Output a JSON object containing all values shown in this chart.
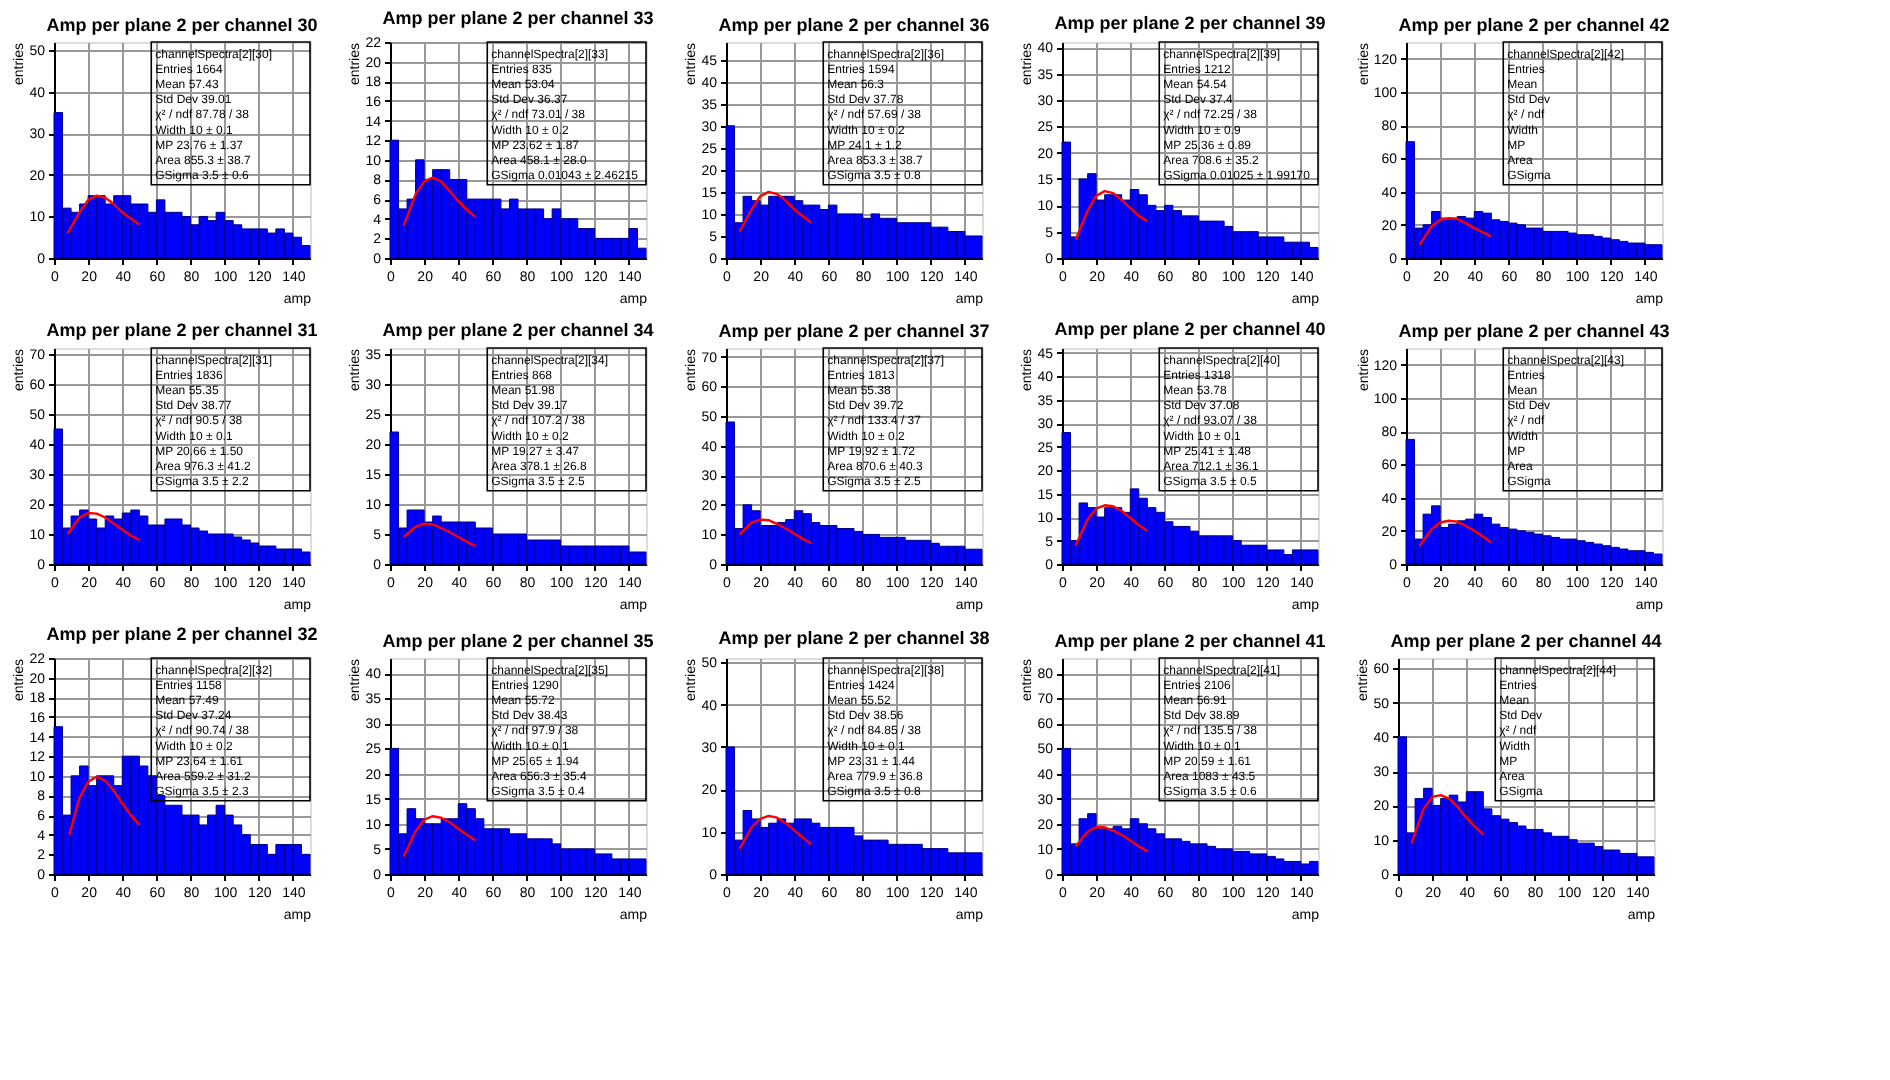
{
  "chart_data": [
    {
      "type": "histogram",
      "title": "Amp per plane 2 per channel 30",
      "xlabel": "amp",
      "ylabel": "entries",
      "color": "#0000ff",
      "bins": [
        0,
        5,
        10,
        15,
        20,
        25,
        30,
        35,
        40,
        45,
        50,
        55,
        60,
        65,
        70,
        75,
        80,
        85,
        90,
        95,
        100,
        105,
        110,
        115,
        120,
        125,
        130,
        135,
        140,
        145,
        150
      ],
      "values": [
        35,
        12,
        11,
        13,
        15,
        15,
        13,
        15,
        15,
        13,
        13,
        11,
        14,
        11,
        11,
        10,
        8,
        10,
        9,
        11,
        9,
        8,
        7,
        7,
        7,
        6,
        7,
        6,
        5,
        3
      ],
      "series": [
        {
          "type": "line",
          "color": "#ff0000",
          "x": [
            8,
            15,
            20,
            25,
            30,
            35,
            40,
            45,
            50
          ],
          "values": [
            6,
            11,
            14,
            15,
            14.5,
            13,
            11,
            9.5,
            8
          ]
        }
      ],
      "xlim": [
        0,
        150
      ],
      "xticks": [
        0,
        20,
        40,
        60,
        80,
        100,
        120,
        140
      ],
      "ylim": [
        0,
        52
      ],
      "yticks": [
        0,
        10,
        20,
        30,
        40,
        50
      ],
      "grid": true,
      "annotations": [
        "channelSpectra[2][30]",
        "Entries 1664",
        "Mean 57.43",
        "Std Dev 39.01",
        "χ² / ndf 87.78 / 38",
        "Width 10 ± 0.1",
        "MP 23.76 ± 1.37",
        "Area 855.3 ± 38.7",
        "GSigma 3.5 ± 0.6"
      ]
    },
    {
      "type": "histogram",
      "title": "Amp per plane 2 per channel 33",
      "xlabel": "amp",
      "ylabel": "entries",
      "color": "#0000ff",
      "bins": [
        0,
        5,
        10,
        15,
        20,
        25,
        30,
        35,
        40,
        45,
        50,
        55,
        60,
        65,
        70,
        75,
        80,
        85,
        90,
        95,
        100,
        105,
        110,
        115,
        120,
        125,
        130,
        135,
        140,
        145,
        150
      ],
      "values": [
        12,
        5,
        6,
        10,
        8,
        9,
        9,
        8,
        8,
        6,
        6,
        6,
        6,
        5,
        6,
        5,
        5,
        5,
        4,
        5,
        4,
        4,
        3,
        3,
        2,
        2,
        2,
        2,
        3,
        1
      ],
      "series": [
        {
          "type": "line",
          "color": "#ff0000",
          "x": [
            8,
            15,
            20,
            25,
            30,
            35,
            40,
            45,
            50
          ],
          "values": [
            3.3,
            6.5,
            7.8,
            8.2,
            7.8,
            6.8,
            5.8,
            4.9,
            4.2
          ]
        }
      ],
      "xlim": [
        0,
        150
      ],
      "xticks": [
        0,
        20,
        40,
        60,
        80,
        100,
        120,
        140
      ],
      "ylim": [
        0,
        22
      ],
      "yticks": [
        0,
        2,
        4,
        6,
        8,
        10,
        12,
        14,
        16,
        18,
        20,
        22
      ],
      "grid": true,
      "annotations": [
        "channelSpectra[2][33]",
        "Entries 835",
        "Mean 53.04",
        "Std Dev 36.37",
        "χ² / ndf 73.01 / 38",
        "Width 10 ± 0.2",
        "MP 23.62 ± 1.87",
        "Area 458.1 ± 28.0",
        "GSigma 0.01043 ± 2.46215"
      ]
    },
    {
      "type": "histogram",
      "title": "Amp per plane 2 per channel 36",
      "xlabel": "amp",
      "ylabel": "entries",
      "color": "#0000ff",
      "bins": [
        0,
        5,
        10,
        15,
        20,
        25,
        30,
        35,
        40,
        45,
        50,
        55,
        60,
        65,
        70,
        75,
        80,
        85,
        90,
        95,
        100,
        105,
        110,
        115,
        120,
        125,
        130,
        135,
        140,
        145,
        150
      ],
      "values": [
        30,
        8,
        14,
        13,
        12,
        14,
        14,
        14,
        13,
        12,
        12,
        11,
        12,
        10,
        10,
        10,
        9,
        10,
        9,
        9,
        8,
        8,
        8,
        8,
        7,
        7,
        6,
        6,
        5,
        5
      ],
      "series": [
        {
          "type": "line",
          "color": "#ff0000",
          "x": [
            8,
            15,
            20,
            25,
            30,
            35,
            40,
            45,
            50
          ],
          "values": [
            6,
            11,
            14,
            15,
            14.5,
            13,
            11,
            9.5,
            8
          ]
        }
      ],
      "xlim": [
        0,
        150
      ],
      "xticks": [
        0,
        20,
        40,
        60,
        80,
        100,
        120,
        140
      ],
      "ylim": [
        0,
        49
      ],
      "yticks": [
        0,
        5,
        10,
        15,
        20,
        25,
        30,
        35,
        40,
        45
      ],
      "grid": true,
      "annotations": [
        "channelSpectra[2][36]",
        "Entries 1594",
        "Mean 56.3",
        "Std Dev 37.78",
        "χ² / ndf 57.69 / 38",
        "Width 10 ± 0.2",
        "MP 24.1 ± 1.2",
        "Area 853.3 ± 38.7",
        "GSigma 3.5 ± 0.8"
      ]
    },
    {
      "type": "histogram",
      "title": "Amp per plane 2 per channel 39",
      "xlabel": "amp",
      "ylabel": "entries",
      "color": "#0000ff",
      "bins": [
        0,
        5,
        10,
        15,
        20,
        25,
        30,
        35,
        40,
        45,
        50,
        55,
        60,
        65,
        70,
        75,
        80,
        85,
        90,
        95,
        100,
        105,
        110,
        115,
        120,
        125,
        130,
        135,
        140,
        145,
        150
      ],
      "values": [
        22,
        4,
        15,
        16,
        11,
        12,
        12,
        11,
        13,
        12,
        10,
        9,
        10,
        9,
        8,
        8,
        7,
        7,
        7,
        6,
        5,
        5,
        5,
        4,
        4,
        4,
        3,
        3,
        3,
        2
      ],
      "series": [
        {
          "type": "line",
          "color": "#ff0000",
          "x": [
            8,
            15,
            20,
            25,
            30,
            35,
            40,
            45,
            50
          ],
          "values": [
            3.5,
            9,
            11.8,
            12.7,
            12.3,
            11,
            9.5,
            8,
            7
          ]
        }
      ],
      "xlim": [
        0,
        150
      ],
      "xticks": [
        0,
        20,
        40,
        60,
        80,
        100,
        120,
        140
      ],
      "ylim": [
        0,
        41
      ],
      "yticks": [
        0,
        5,
        10,
        15,
        20,
        25,
        30,
        35,
        40
      ],
      "grid": true,
      "annotations": [
        "channelSpectra[2][39]",
        "Entries 1212",
        "Mean 54.54",
        "Std Dev 37.4",
        "χ² / ndf 72.25 / 38",
        "Width 10 ± 0.9",
        "MP 25.36 ± 0.89",
        "Area 708.6 ± 35.2",
        "GSigma 0.01025 ± 1.99170"
      ]
    },
    {
      "type": "histogram",
      "title": "Amp per plane 2 per channel 42",
      "xlabel": "amp",
      "ylabel": "entries",
      "color": "#0000ff",
      "bins": [
        0,
        5,
        10,
        15,
        20,
        25,
        30,
        35,
        40,
        45,
        50,
        55,
        60,
        65,
        70,
        75,
        80,
        85,
        90,
        95,
        100,
        105,
        110,
        115,
        120,
        125,
        130,
        135,
        140,
        145,
        150
      ],
      "values": [
        70,
        18,
        20,
        28,
        24,
        24,
        25,
        24,
        28,
        27,
        23,
        22,
        21,
        20,
        18,
        18,
        16,
        16,
        16,
        15,
        14,
        14,
        13,
        12,
        11,
        10,
        9,
        9,
        8,
        8
      ],
      "series": [
        {
          "type": "line",
          "color": "#ff0000",
          "x": [
            8,
            15,
            20,
            25,
            30,
            35,
            40,
            45,
            50
          ],
          "values": [
            8,
            19,
            23,
            24,
            23.5,
            21,
            18,
            15.5,
            13
          ]
        }
      ],
      "xlim": [
        0,
        150
      ],
      "xticks": [
        0,
        20,
        40,
        60,
        80,
        100,
        120,
        140
      ],
      "ylim": [
        0,
        130
      ],
      "yticks": [
        0,
        20,
        40,
        60,
        80,
        100,
        120
      ],
      "grid": true,
      "annotations": [
        "channelSpectra[2][42]",
        "Entries",
        "Mean",
        "Std Dev",
        "χ² / ndf",
        "Width",
        "MP",
        "Area",
        "GSigma"
      ]
    },
    {
      "type": "histogram",
      "title": "Amp per plane 2 per channel 31",
      "xlabel": "amp",
      "ylabel": "entries",
      "color": "#0000ff",
      "bins": [
        0,
        5,
        10,
        15,
        20,
        25,
        30,
        35,
        40,
        45,
        50,
        55,
        60,
        65,
        70,
        75,
        80,
        85,
        90,
        95,
        100,
        105,
        110,
        115,
        120,
        125,
        130,
        135,
        140,
        145,
        150
      ],
      "values": [
        45,
        12,
        16,
        18,
        15,
        12,
        16,
        15,
        17,
        18,
        16,
        13,
        13,
        15,
        15,
        13,
        12,
        11,
        10,
        10,
        10,
        9,
        8,
        7,
        6,
        6,
        5,
        5,
        5,
        4
      ],
      "series": [
        {
          "type": "line",
          "color": "#ff0000",
          "x": [
            8,
            15,
            20,
            25,
            30,
            35,
            40,
            45,
            50
          ],
          "values": [
            10,
            15.5,
            17,
            16.8,
            15.5,
            13.5,
            11.5,
            9.5,
            8
          ]
        }
      ],
      "xlim": [
        0,
        150
      ],
      "xticks": [
        0,
        20,
        40,
        60,
        80,
        100,
        120,
        140
      ],
      "ylim": [
        0,
        72
      ],
      "yticks": [
        0,
        10,
        20,
        30,
        40,
        50,
        60,
        70
      ],
      "grid": true,
      "annotations": [
        "channelSpectra[2][31]",
        "Entries 1836",
        "Mean 55.35",
        "Std Dev 38.77",
        "χ² / ndf 90.5 / 38",
        "Width 10 ± 0.1",
        "MP 20.66 ± 1.50",
        "Area 976.3 ± 41.2",
        "GSigma 3.5 ± 2.2"
      ]
    },
    {
      "type": "histogram",
      "title": "Amp per plane 2 per channel 34",
      "xlabel": "amp",
      "ylabel": "entries",
      "color": "#0000ff",
      "bins": [
        0,
        5,
        10,
        15,
        20,
        25,
        30,
        35,
        40,
        45,
        50,
        55,
        60,
        65,
        70,
        75,
        80,
        85,
        90,
        95,
        100,
        105,
        110,
        115,
        120,
        125,
        130,
        135,
        140,
        145,
        150
      ],
      "values": [
        22,
        6,
        9,
        9,
        7,
        8,
        7,
        7,
        7,
        7,
        6,
        6,
        5,
        5,
        5,
        5,
        4,
        4,
        4,
        4,
        3,
        3,
        3,
        3,
        3,
        3,
        3,
        3,
        2,
        2
      ],
      "series": [
        {
          "type": "line",
          "color": "#ff0000",
          "x": [
            8,
            15,
            20,
            25,
            30,
            35,
            40,
            45,
            50
          ],
          "values": [
            4.5,
            6.2,
            6.7,
            6.6,
            6,
            5.3,
            4.5,
            3.7,
            3
          ]
        }
      ],
      "xlim": [
        0,
        150
      ],
      "xticks": [
        0,
        20,
        40,
        60,
        80,
        100,
        120,
        140
      ],
      "ylim": [
        0,
        36
      ],
      "yticks": [
        0,
        5,
        10,
        15,
        20,
        25,
        30,
        35
      ],
      "grid": true,
      "annotations": [
        "channelSpectra[2][34]",
        "Entries 868",
        "Mean 51.98",
        "Std Dev 39.17",
        "χ² / ndf 107.2 / 38",
        "Width 10 ± 0.2",
        "MP 19.27 ± 3.47",
        "Area 378.1 ± 26.8",
        "GSigma 3.5 ± 2.5"
      ]
    },
    {
      "type": "histogram",
      "title": "Amp per plane 2 per channel 37",
      "xlabel": "amp",
      "ylabel": "entries",
      "color": "#0000ff",
      "bins": [
        0,
        5,
        10,
        15,
        20,
        25,
        30,
        35,
        40,
        45,
        50,
        55,
        60,
        65,
        70,
        75,
        80,
        85,
        90,
        95,
        100,
        105,
        110,
        115,
        120,
        125,
        130,
        135,
        140,
        145,
        150
      ],
      "values": [
        48,
        12,
        20,
        18,
        13,
        13,
        14,
        15,
        18,
        17,
        14,
        13,
        13,
        12,
        12,
        11,
        10,
        10,
        9,
        9,
        9,
        8,
        8,
        8,
        7,
        6,
        6,
        6,
        5,
        5
      ],
      "series": [
        {
          "type": "line",
          "color": "#ff0000",
          "x": [
            8,
            15,
            20,
            25,
            30,
            35,
            40,
            45,
            50
          ],
          "values": [
            10,
            14,
            15,
            14.8,
            13.5,
            12,
            10.2,
            8.5,
            7
          ]
        }
      ],
      "xlim": [
        0,
        150
      ],
      "xticks": [
        0,
        20,
        40,
        60,
        80,
        100,
        120,
        140
      ],
      "ylim": [
        0,
        73
      ],
      "yticks": [
        0,
        10,
        20,
        30,
        40,
        50,
        60,
        70
      ],
      "grid": true,
      "annotations": [
        "channelSpectra[2][37]",
        "Entries 1813",
        "Mean 55.38",
        "Std Dev 39.72",
        "χ² / ndf 133.4 / 37",
        "Width 10 ± 0.2",
        "MP 19.92 ± 1.72",
        "Area 870.6 ± 40.3",
        "GSigma 3.5 ± 2.5"
      ]
    },
    {
      "type": "histogram",
      "title": "Amp per plane 2 per channel 40",
      "xlabel": "amp",
      "ylabel": "entries",
      "color": "#0000ff",
      "bins": [
        0,
        5,
        10,
        15,
        20,
        25,
        30,
        35,
        40,
        45,
        50,
        55,
        60,
        65,
        70,
        75,
        80,
        85,
        90,
        95,
        100,
        105,
        110,
        115,
        120,
        125,
        130,
        135,
        140,
        145,
        150
      ],
      "values": [
        28,
        5,
        13,
        12,
        10,
        12,
        12,
        11,
        16,
        14,
        12,
        11,
        9,
        8,
        8,
        7,
        6,
        6,
        6,
        6,
        5,
        4,
        4,
        4,
        3,
        3,
        2,
        3,
        3,
        3
      ],
      "series": [
        {
          "type": "line",
          "color": "#ff0000",
          "x": [
            8,
            15,
            20,
            25,
            30,
            35,
            40,
            45,
            50
          ],
          "values": [
            4,
            9.5,
            11.8,
            12.5,
            12.3,
            11.3,
            9.8,
            8.3,
            7
          ]
        }
      ],
      "xlim": [
        0,
        150
      ],
      "xticks": [
        0,
        20,
        40,
        60,
        80,
        100,
        120,
        140
      ],
      "ylim": [
        0,
        46
      ],
      "yticks": [
        0,
        5,
        10,
        15,
        20,
        25,
        30,
        35,
        40,
        45
      ],
      "grid": true,
      "annotations": [
        "channelSpectra[2][40]",
        "Entries 1318",
        "Mean 53.78",
        "Std Dev 37.08",
        "χ² / ndf 93.07 / 38",
        "Width 10 ± 0.1",
        "MP 25.41 ± 1.48",
        "Area 712.1 ± 36.1",
        "GSigma 3.5 ± 0.5"
      ]
    },
    {
      "type": "histogram",
      "title": "Amp per plane 2 per channel 43",
      "xlabel": "amp",
      "ylabel": "entries",
      "color": "#0000ff",
      "bins": [
        0,
        5,
        10,
        15,
        20,
        25,
        30,
        35,
        40,
        45,
        50,
        55,
        60,
        65,
        70,
        75,
        80,
        85,
        90,
        95,
        100,
        105,
        110,
        115,
        120,
        125,
        130,
        135,
        140,
        145,
        150
      ],
      "values": [
        75,
        15,
        30,
        35,
        22,
        24,
        26,
        27,
        30,
        28,
        24,
        22,
        21,
        20,
        19,
        18,
        17,
        16,
        15,
        15,
        14,
        13,
        12,
        11,
        10,
        9,
        8,
        8,
        7,
        6
      ],
      "series": [
        {
          "type": "line",
          "color": "#ff0000",
          "x": [
            8,
            15,
            20,
            25,
            30,
            35,
            40,
            45,
            50
          ],
          "values": [
            11,
            21,
            25,
            26,
            25.5,
            23,
            20,
            16.5,
            13
          ]
        }
      ],
      "xlim": [
        0,
        150
      ],
      "xticks": [
        0,
        20,
        40,
        60,
        80,
        100,
        120,
        140
      ],
      "ylim": [
        0,
        130
      ],
      "yticks": [
        0,
        20,
        40,
        60,
        80,
        100,
        120
      ],
      "grid": true,
      "annotations": [
        "channelSpectra[2][43]",
        "Entries",
        "Mean",
        "Std Dev",
        "χ² / ndf",
        "Width",
        "MP",
        "Area",
        "GSigma"
      ]
    },
    {
      "type": "histogram",
      "title": "Amp per plane 2 per channel 32",
      "xlabel": "amp",
      "ylabel": "entries",
      "color": "#0000ff",
      "bins": [
        0,
        5,
        10,
        15,
        20,
        25,
        30,
        35,
        40,
        45,
        50,
        55,
        60,
        65,
        70,
        75,
        80,
        85,
        90,
        95,
        100,
        105,
        110,
        115,
        120,
        125,
        130,
        135,
        140,
        145,
        150
      ],
      "values": [
        15,
        6,
        10,
        11,
        9,
        10,
        10,
        9,
        12,
        12,
        11,
        10,
        8,
        7,
        7,
        6,
        6,
        5,
        6,
        7,
        6,
        5,
        4,
        3,
        3,
        2,
        3,
        3,
        3,
        2
      ],
      "series": [
        {
          "type": "line",
          "color": "#ff0000",
          "x": [
            9,
            15,
            20,
            25,
            30,
            35,
            40,
            45,
            50
          ],
          "values": [
            4,
            7.8,
            9.4,
            9.9,
            9.5,
            8.5,
            7.2,
            6,
            5
          ]
        }
      ],
      "xlim": [
        0,
        150
      ],
      "xticks": [
        0,
        20,
        40,
        60,
        80,
        100,
        120,
        140
      ],
      "ylim": [
        0,
        22
      ],
      "yticks": [
        0,
        2,
        4,
        6,
        8,
        10,
        12,
        14,
        16,
        18,
        20,
        22
      ],
      "grid": true,
      "annotations": [
        "channelSpectra[2][32]",
        "Entries 1158",
        "Mean 57.49",
        "Std Dev 37.24",
        "χ² / ndf 90.74 / 38",
        "Width 10 ± 0.2",
        "MP 23.64 ± 1.61",
        "Area 559.2 ± 31.2",
        "GSigma 3.5 ± 2.3"
      ]
    },
    {
      "type": "histogram",
      "title": "Amp per plane 2 per channel 35",
      "xlabel": "amp",
      "ylabel": "entries",
      "color": "#0000ff",
      "bins": [
        0,
        5,
        10,
        15,
        20,
        25,
        30,
        35,
        40,
        45,
        50,
        55,
        60,
        65,
        70,
        75,
        80,
        85,
        90,
        95,
        100,
        105,
        110,
        115,
        120,
        125,
        130,
        135,
        140,
        145,
        150
      ],
      "values": [
        25,
        8,
        13,
        11,
        10,
        10,
        11,
        11,
        14,
        13,
        11,
        9,
        9,
        9,
        8,
        8,
        7,
        7,
        7,
        6,
        5,
        5,
        5,
        5,
        4,
        4,
        3,
        3,
        3,
        3
      ],
      "series": [
        {
          "type": "line",
          "color": "#ff0000",
          "x": [
            8,
            15,
            20,
            25,
            30,
            35,
            40,
            45,
            50
          ],
          "values": [
            3.5,
            8.5,
            10.8,
            11.5,
            11.2,
            10.3,
            9,
            7.8,
            6.7
          ]
        }
      ],
      "xlim": [
        0,
        150
      ],
      "xticks": [
        0,
        20,
        40,
        60,
        80,
        100,
        120,
        140
      ],
      "ylim": [
        0,
        43
      ],
      "yticks": [
        0,
        5,
        10,
        15,
        20,
        25,
        30,
        35,
        40
      ],
      "grid": true,
      "annotations": [
        "channelSpectra[2][35]",
        "Entries 1290",
        "Mean 55.72",
        "Std Dev 38.43",
        "χ² / ndf 97.9 / 38",
        "Width 10 ± 0.1",
        "MP 25.65 ± 1.94",
        "Area 656.3 ± 35.4",
        "GSigma 3.5 ± 0.4"
      ]
    },
    {
      "type": "histogram",
      "title": "Amp per plane 2 per channel 38",
      "xlabel": "amp",
      "ylabel": "entries",
      "color": "#0000ff",
      "bins": [
        0,
        5,
        10,
        15,
        20,
        25,
        30,
        35,
        40,
        45,
        50,
        55,
        60,
        65,
        70,
        75,
        80,
        85,
        90,
        95,
        100,
        105,
        110,
        115,
        120,
        125,
        130,
        135,
        140,
        145,
        150
      ],
      "values": [
        30,
        8,
        15,
        13,
        11,
        12,
        13,
        12,
        13,
        13,
        12,
        11,
        11,
        11,
        11,
        9,
        8,
        8,
        8,
        7,
        7,
        7,
        7,
        6,
        6,
        6,
        5,
        5,
        5,
        5
      ],
      "series": [
        {
          "type": "line",
          "color": "#ff0000",
          "x": [
            8,
            15,
            20,
            25,
            30,
            35,
            40,
            45,
            50
          ],
          "values": [
            6,
            11,
            13,
            13.7,
            13.3,
            12,
            10.3,
            8.6,
            7
          ]
        }
      ],
      "xlim": [
        0,
        150
      ],
      "xticks": [
        0,
        20,
        40,
        60,
        80,
        100,
        120,
        140
      ],
      "ylim": [
        0,
        51
      ],
      "yticks": [
        0,
        10,
        20,
        30,
        40,
        50
      ],
      "grid": true,
      "annotations": [
        "channelSpectra[2][38]",
        "Entries 1424",
        "Mean 55.52",
        "Std Dev 38.56",
        "χ² / ndf 84.85 / 38",
        "Width 10 ± 0.1",
        "MP 23.31 ± 1.44",
        "Area 779.9 ± 36.8",
        "GSigma 3.5 ± 0.8"
      ]
    },
    {
      "type": "histogram",
      "title": "Amp per plane 2 per channel 41",
      "xlabel": "amp",
      "ylabel": "entries",
      "color": "#0000ff",
      "bins": [
        0,
        5,
        10,
        15,
        20,
        25,
        30,
        35,
        40,
        45,
        50,
        55,
        60,
        65,
        70,
        75,
        80,
        85,
        90,
        95,
        100,
        105,
        110,
        115,
        120,
        125,
        130,
        135,
        140,
        145,
        150
      ],
      "values": [
        50,
        12,
        22,
        24,
        18,
        18,
        19,
        18,
        22,
        20,
        18,
        16,
        14,
        14,
        13,
        12,
        12,
        11,
        10,
        10,
        9,
        9,
        8,
        8,
        7,
        6,
        5,
        5,
        4,
        5
      ],
      "series": [
        {
          "type": "line",
          "color": "#ff0000",
          "x": [
            8,
            15,
            20,
            25,
            30,
            35,
            40,
            45,
            50
          ],
          "values": [
            11,
            16.8,
            18.7,
            18.6,
            17.3,
            15.5,
            13.3,
            11,
            9
          ]
        }
      ],
      "xlim": [
        0,
        150
      ],
      "xticks": [
        0,
        20,
        40,
        60,
        80,
        100,
        120,
        140
      ],
      "ylim": [
        0,
        86
      ],
      "yticks": [
        0,
        10,
        20,
        30,
        40,
        50,
        60,
        70,
        80
      ],
      "grid": true,
      "annotations": [
        "channelSpectra[2][41]",
        "Entries 2106",
        "Mean 56.91",
        "Std Dev 38.89",
        "χ² / ndf 135.5 / 38",
        "Width 10 ± 0.1",
        "MP 20.59 ± 1.61",
        "Area 1083 ± 43.5",
        "GSigma 3.5 ± 0.6"
      ]
    },
    {
      "type": "histogram",
      "title": "Amp per plane 2 per channel 44",
      "xlabel": "amp",
      "ylabel": "entries",
      "color": "#0000ff",
      "bins": [
        0,
        5,
        10,
        15,
        20,
        25,
        30,
        35,
        40,
        45,
        50,
        55,
        60,
        65,
        70,
        75,
        80,
        85,
        90,
        95,
        100,
        105,
        110,
        115,
        120,
        125,
        130,
        135,
        140,
        145,
        150
      ],
      "values": [
        40,
        12,
        22,
        25,
        20,
        22,
        23,
        21,
        24,
        24,
        19,
        17,
        16,
        15,
        14,
        13,
        13,
        12,
        11,
        11,
        10,
        9,
        9,
        8,
        7,
        7,
        6,
        6,
        5,
        5
      ],
      "series": [
        {
          "type": "line",
          "color": "#ff0000",
          "x": [
            8,
            15,
            20,
            25,
            30,
            35,
            40,
            45,
            50
          ],
          "values": [
            9,
            19,
            22.5,
            23,
            22,
            19.5,
            16.5,
            13.8,
            11.5
          ]
        }
      ],
      "xlim": [
        0,
        150
      ],
      "xticks": [
        0,
        20,
        40,
        60,
        80,
        100,
        120,
        140
      ],
      "ylim": [
        0,
        63
      ],
      "yticks": [
        0,
        10,
        20,
        30,
        40,
        50,
        60
      ],
      "grid": true,
      "annotations": [
        "channelSpectra[2][44]",
        "Entries",
        "Mean",
        "Std Dev",
        "χ² / ndf",
        "Width",
        "MP",
        "Area",
        "GSigma"
      ]
    }
  ]
}
